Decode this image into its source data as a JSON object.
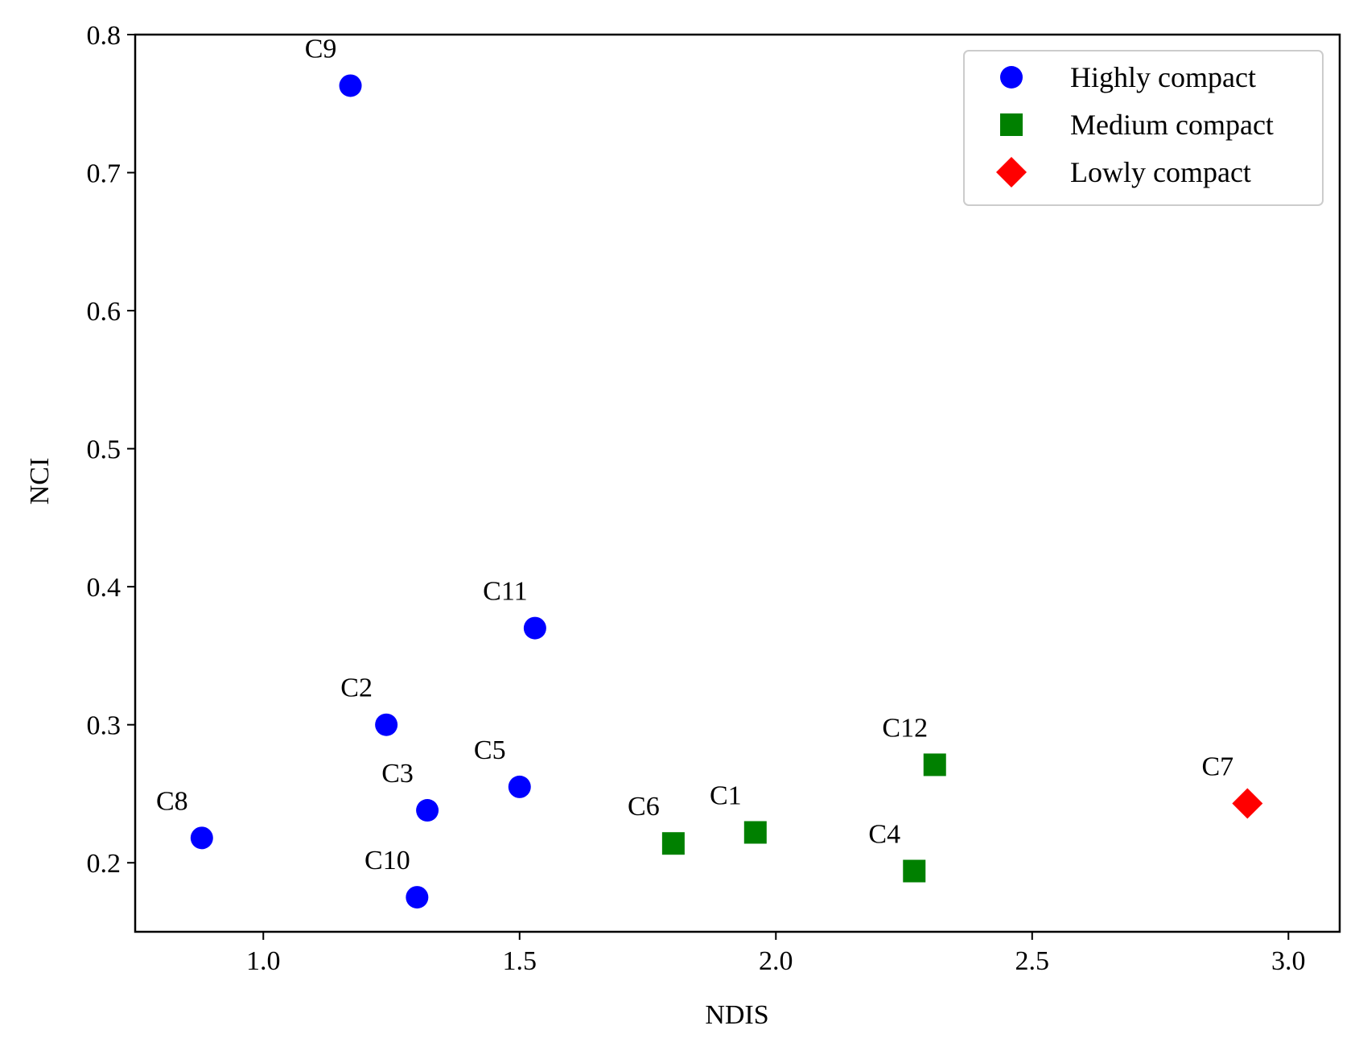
{
  "chart_data": {
    "type": "scatter",
    "title": "",
    "xlabel": "NDIS",
    "ylabel": "NCI",
    "xlim": [
      0.75,
      3.1
    ],
    "ylim": [
      0.15,
      0.8
    ],
    "xticks": [
      1.0,
      1.5,
      2.0,
      2.5,
      3.0
    ],
    "xtick_labels": [
      "1.0",
      "1.5",
      "2.0",
      "2.5",
      "3.0"
    ],
    "yticks": [
      0.2,
      0.3,
      0.4,
      0.5,
      0.6,
      0.7,
      0.8
    ],
    "ytick_labels": [
      "0.2",
      "0.3",
      "0.4",
      "0.5",
      "0.6",
      "0.7",
      "0.8"
    ],
    "grid": false,
    "legend_position": "top-right",
    "series": [
      {
        "name": "Highly compact",
        "marker": "circle",
        "color": "#0000ff",
        "points": [
          {
            "label": "C9",
            "x": 1.17,
            "y": 0.763
          },
          {
            "label": "C11",
            "x": 1.53,
            "y": 0.37
          },
          {
            "label": "C2",
            "x": 1.24,
            "y": 0.3
          },
          {
            "label": "C5",
            "x": 1.5,
            "y": 0.255
          },
          {
            "label": "C3",
            "x": 1.32,
            "y": 0.238
          },
          {
            "label": "C8",
            "x": 0.88,
            "y": 0.218
          },
          {
            "label": "C10",
            "x": 1.3,
            "y": 0.175
          }
        ]
      },
      {
        "name": "Medium compact",
        "marker": "square",
        "color": "#008000",
        "points": [
          {
            "label": "C12",
            "x": 2.31,
            "y": 0.271
          },
          {
            "label": "C1",
            "x": 1.96,
            "y": 0.222
          },
          {
            "label": "C6",
            "x": 1.8,
            "y": 0.214
          },
          {
            "label": "C4",
            "x": 2.27,
            "y": 0.194
          }
        ]
      },
      {
        "name": "Lowly compact",
        "marker": "diamond",
        "color": "#ff0000",
        "points": [
          {
            "label": "C7",
            "x": 2.92,
            "y": 0.243
          }
        ]
      }
    ]
  }
}
